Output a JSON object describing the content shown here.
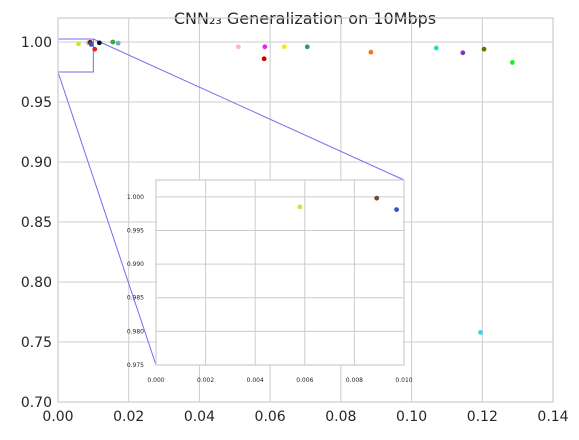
{
  "chart_data": {
    "type": "scatter",
    "title": "CNN₂₃ Generalization on 10Mbps",
    "xlabel": "",
    "ylabel": "",
    "xlim": [
      0,
      0.14
    ],
    "ylim": [
      0.7,
      1.02
    ],
    "x_ticks": [
      "0.00",
      "0.02",
      "0.04",
      "0.06",
      "0.08",
      "0.10",
      "0.12",
      "0.14"
    ],
    "y_ticks": [
      "0.70",
      "0.75",
      "0.80",
      "0.85",
      "0.90",
      "0.95",
      "1.00"
    ],
    "grid": true,
    "points": [
      {
        "x": 0.0058,
        "y": 0.9985,
        "color": "#c8e63a"
      },
      {
        "x": 0.0086,
        "y": 0.9993,
        "color": "#b5b5b5"
      },
      {
        "x": 0.0091,
        "y": 0.9998,
        "color": "#7a1a1a"
      },
      {
        "x": 0.0094,
        "y": 0.998,
        "color": "#3355bb"
      },
      {
        "x": 0.0104,
        "y": 0.994,
        "color": "#dd2222"
      },
      {
        "x": 0.0117,
        "y": 0.9993,
        "color": "#111111"
      },
      {
        "x": 0.0155,
        "y": 1.0,
        "color": "#33aa33"
      },
      {
        "x": 0.017,
        "y": 0.999,
        "color": "#66aacc"
      },
      {
        "x": 0.051,
        "y": 0.996,
        "color": "#ffb6c1"
      },
      {
        "x": 0.0585,
        "y": 0.996,
        "color": "#ee22ee"
      },
      {
        "x": 0.0583,
        "y": 0.986,
        "color": "#cc0000"
      },
      {
        "x": 0.064,
        "y": 0.996,
        "color": "#eeee11"
      },
      {
        "x": 0.0705,
        "y": 0.996,
        "color": "#2a9a7a"
      },
      {
        "x": 0.0885,
        "y": 0.9915,
        "color": "#ee7722"
      },
      {
        "x": 0.107,
        "y": 0.995,
        "color": "#22ddbb"
      },
      {
        "x": 0.1145,
        "y": 0.991,
        "color": "#8833bb"
      },
      {
        "x": 0.1205,
        "y": 0.994,
        "color": "#667700"
      },
      {
        "x": 0.1285,
        "y": 0.983,
        "color": "#22ee22"
      },
      {
        "x": 0.1195,
        "y": 0.758,
        "color": "#44ccee"
      }
    ],
    "inset": {
      "xlim": [
        0,
        0.01
      ],
      "ylim": [
        0.975,
        1.0025
      ],
      "x_ticks": [
        "0.000",
        "0.002",
        "0.004",
        "0.006",
        "0.008",
        "0.010"
      ],
      "y_ticks": [
        "0.975",
        "0.980",
        "0.985",
        "0.990",
        "0.995",
        "1.000"
      ],
      "points": [
        {
          "x": 0.0058,
          "y": 0.9985,
          "color": "#c8e63a"
        },
        {
          "x": 0.0089,
          "y": 0.9998,
          "color": "#7a4a1a"
        },
        {
          "x": 0.0097,
          "y": 0.9981,
          "color": "#3355bb"
        }
      ]
    }
  }
}
